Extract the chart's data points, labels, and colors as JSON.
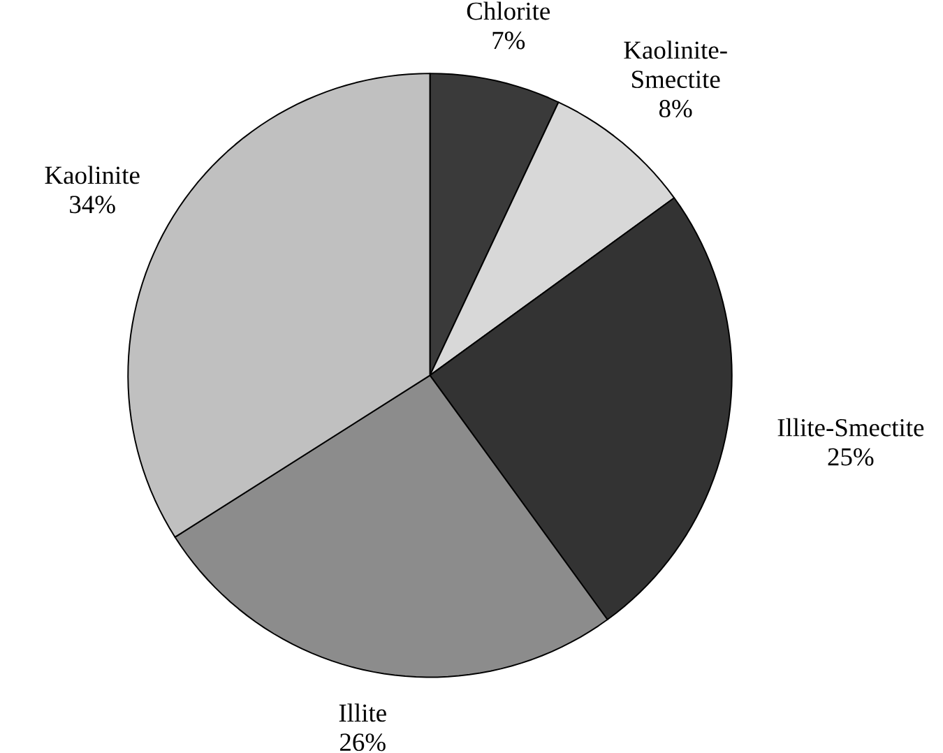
{
  "chart_data": {
    "type": "pie",
    "categories": [
      "Chlorite",
      "Kaolinite-Smectite",
      "Illite-Smectite",
      "Illite",
      "Kaolinite"
    ],
    "values": [
      7,
      8,
      25,
      26,
      34
    ],
    "value_labels": [
      "7%",
      "8%",
      "25%",
      "26%",
      "34%"
    ],
    "colors": [
      "#3a3a3a",
      "#d8d8d8",
      "#333333",
      "#8c8c8c",
      "#c0c0c0"
    ]
  }
}
